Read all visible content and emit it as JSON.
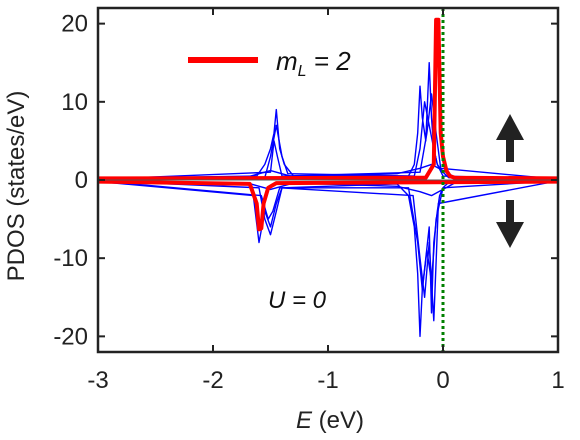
{
  "chart_data": {
    "type": "line",
    "title": "",
    "xlabel_var": "E",
    "xlabel_unit": " (eV)",
    "ylabel": "PDOS (states/eV)",
    "xlim": [
      -3,
      1
    ],
    "ylim": [
      -22,
      22
    ],
    "xticks": [
      -3,
      -2,
      -1,
      0,
      1
    ],
    "xtick_labels": [
      "-3",
      "-2",
      "-1",
      "0",
      "1"
    ],
    "yticks": [
      -20,
      -10,
      0,
      10,
      20
    ],
    "ytick_labels": [
      "-20",
      "-10",
      "0",
      "10",
      "20"
    ],
    "grid": false,
    "legend": {
      "placement": "top-left",
      "var": "m",
      "sub": "L",
      "rest": " = 2",
      "color": "#ff0000"
    },
    "annotation": "U = 0",
    "fermi_level": {
      "x": 0,
      "color": "#008000",
      "style": "dotted"
    },
    "spin_arrows": {
      "up": "up-arrow-icon",
      "down": "down-arrow-icon",
      "color": "#222222"
    },
    "series": [
      {
        "name": "m_L = 2",
        "color": "#ff0000",
        "spin_up": {
          "x": [
            -3,
            -0.15,
            -0.08,
            -0.06,
            -0.05,
            -0.04,
            -0.02,
            0.0,
            0.03,
            0.06,
            0.1,
            1
          ],
          "y": [
            0.2,
            0.3,
            2,
            20.5,
            20.5,
            20.5,
            6,
            3,
            1.2,
            0.5,
            0.3,
            0.2
          ]
        },
        "spin_down": {
          "x": [
            -3,
            -1.68,
            -1.62,
            -1.6,
            -1.58,
            -1.56,
            -1.52,
            -1.45,
            1
          ],
          "y": [
            -0.2,
            -0.5,
            -3,
            -6.3,
            -6.2,
            -3,
            -1,
            -0.4,
            -0.2
          ]
        }
      },
      {
        "name": "",
        "color": "#0000ff",
        "spin_up": {
          "x": [
            -3,
            -1.62,
            -1.55,
            -1.5,
            -1.47,
            -1.45,
            -1.42,
            -1.38,
            -1.3,
            -0.3,
            -0.25,
            -0.22,
            -0.2,
            -0.18,
            -0.15,
            -0.12,
            -0.1,
            -0.08,
            -0.05,
            0.0,
            0.05,
            1
          ],
          "y": [
            0.2,
            0.5,
            2,
            4,
            6,
            9,
            4,
            2,
            0.5,
            0.5,
            2,
            6,
            12,
            8,
            5,
            15,
            8,
            4,
            2,
            1,
            0.3,
            0.2
          ]
        },
        "spin_down": {
          "x": [
            -3,
            -1.65,
            -1.6,
            -1.55,
            -1.5,
            -1.45,
            -1.4,
            -0.4,
            -0.3,
            -0.25,
            -0.22,
            -0.2,
            -0.18,
            -0.15,
            -0.12,
            -0.1,
            -0.08,
            -0.05,
            -0.03,
            0.0,
            0.05,
            1
          ],
          "y": [
            -0.2,
            -2,
            -8,
            -4,
            -6,
            -3,
            -1,
            -0.5,
            -2,
            -6,
            -12,
            -20,
            -14,
            -10,
            -6,
            -17,
            -8,
            -4,
            -2,
            -1,
            -0.3,
            -0.2
          ]
        }
      },
      {
        "name": "",
        "color": "#0000ff",
        "spin_up": {
          "x": [
            -3,
            -1.55,
            -1.5,
            -1.45,
            -1.4,
            -1.35,
            -0.25,
            -0.2,
            -0.16,
            -0.12,
            -0.08,
            -0.05,
            0.0,
            1
          ],
          "y": [
            0.1,
            0.3,
            3,
            7,
            3,
            0.8,
            0.5,
            4,
            10,
            7,
            4,
            2,
            0.5,
            0.1
          ]
        },
        "spin_down": {
          "x": [
            -3,
            -1.6,
            -1.55,
            -1.5,
            -1.45,
            -1.4,
            -0.3,
            -0.22,
            -0.18,
            -0.14,
            -0.1,
            -0.06,
            0.0,
            1
          ],
          "y": [
            -0.1,
            -1,
            -5,
            -7,
            -4,
            -1,
            -1,
            -8,
            -14,
            -9,
            -13,
            -5,
            -1,
            -0.1
          ]
        }
      },
      {
        "name": "",
        "color": "#0000ff",
        "spin_up": {
          "x": [
            -3,
            -1.5,
            -1.47,
            -1.44,
            -1.4,
            -0.2,
            -0.14,
            -0.1,
            -0.06,
            -0.02,
            1
          ],
          "y": [
            0.1,
            1,
            5,
            3,
            0.5,
            1,
            6,
            11,
            6,
            1.5,
            0.1
          ]
        },
        "spin_down": {
          "x": [
            -3,
            -1.58,
            -1.52,
            -1.48,
            -1.42,
            -0.26,
            -0.2,
            -0.16,
            -0.12,
            -0.08,
            -0.04,
            1
          ],
          "y": [
            -0.1,
            -2,
            -5,
            -4,
            -1,
            -2,
            -10,
            -15,
            -8,
            -18,
            -3,
            -0.1
          ]
        }
      },
      {
        "name": "",
        "color": "#0000ff",
        "spin_up": {
          "x": [
            -3,
            -1.7,
            -1.5,
            -1.3,
            -0.4,
            -0.2,
            -0.1,
            0.0,
            0.1,
            1
          ],
          "y": [
            0.15,
            0.4,
            1.2,
            0.4,
            0.8,
            1.5,
            2,
            1.2,
            0.4,
            0.15
          ]
        },
        "spin_down": {
          "x": [
            -3,
            -1.7,
            -1.5,
            -1.3,
            -0.4,
            -0.2,
            -0.1,
            0.0,
            0.1,
            1
          ],
          "y": [
            -0.15,
            -0.4,
            -1.2,
            -0.4,
            -0.8,
            -1.5,
            -2,
            -1.2,
            -0.4,
            -0.15
          ]
        }
      }
    ]
  }
}
